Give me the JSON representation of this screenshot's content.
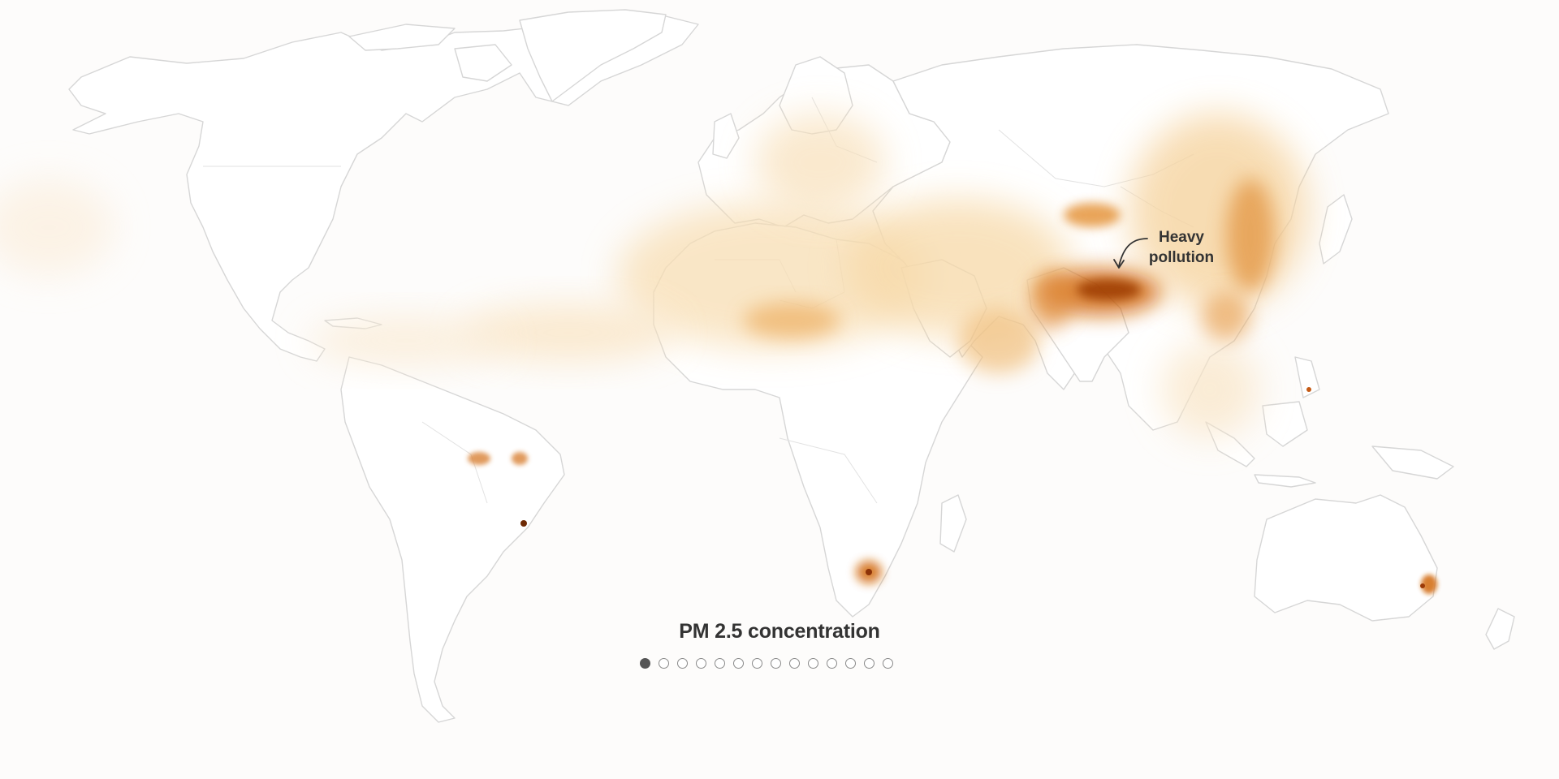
{
  "map": {
    "layer": "PM 2.5 concentration",
    "colors": {
      "background": "#fdfcfb",
      "land": "#ffffff",
      "coastline": "#d6d6d6",
      "low": "#fbe6c8",
      "medium": "#eeb267",
      "high": "#d2690e",
      "extreme": "#9c3a06"
    }
  },
  "annotation": {
    "line1": "Heavy",
    "line2": "pollution",
    "icon": "curved-arrow-icon"
  },
  "title": "PM 2.5 concentration",
  "pager": {
    "total": 14,
    "active_index": 0
  }
}
